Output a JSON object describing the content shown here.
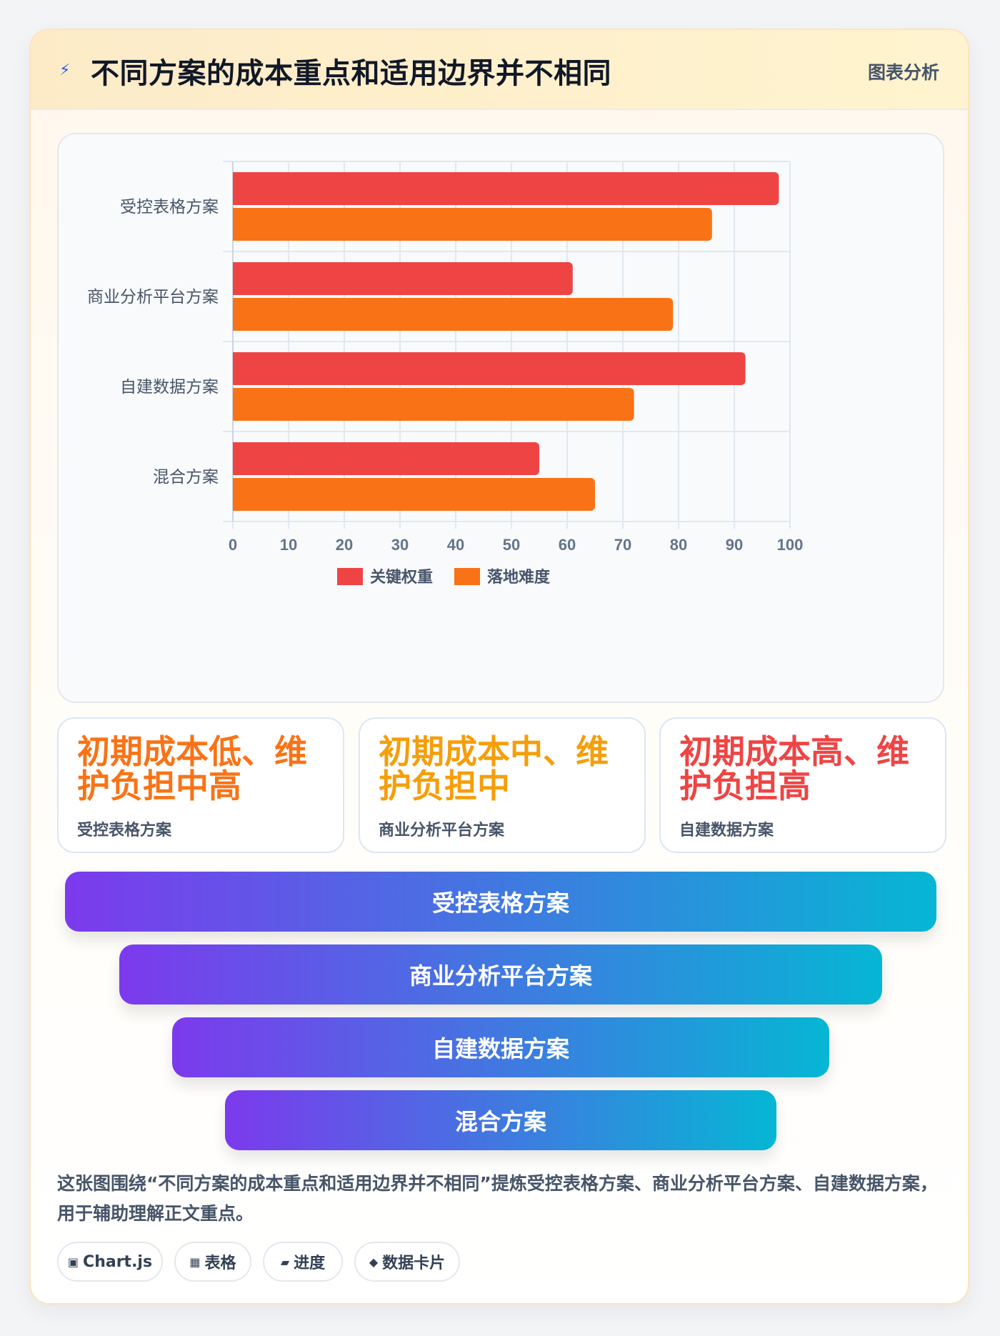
{
  "header": {
    "title": "不同方案的成本重点和适用边界并不相同",
    "tag": "图表分析",
    "icon": "lightning-icon"
  },
  "chart_data": {
    "type": "bar",
    "orientation": "horizontal",
    "categories": [
      "受控表格方案",
      "商业分析平台方案",
      "自建数据方案",
      "混合方案"
    ],
    "series": [
      {
        "name": "关键权重",
        "values": [
          98,
          61,
          92,
          55
        ],
        "color": "#ef4444"
      },
      {
        "name": "落地难度",
        "values": [
          86,
          79,
          72,
          65
        ],
        "color": "#f97316"
      }
    ],
    "xlim": [
      0,
      100
    ],
    "xticks": [
      0,
      10,
      20,
      30,
      40,
      50,
      60,
      70,
      80,
      90,
      100
    ],
    "grid": true,
    "legend": "bottom"
  },
  "stats": [
    {
      "value": "初期成本低、维护负担中高",
      "label": "受控表格方案",
      "color": "#f97316"
    },
    {
      "value": "初期成本中、维护负担中",
      "label": "商业分析平台方案",
      "color": "#f59e0b"
    },
    {
      "value": "初期成本高、维护负担高",
      "label": "自建数据方案",
      "color": "#ef4444"
    }
  ],
  "funnel": [
    "受控表格方案",
    "商业分析平台方案",
    "自建数据方案",
    "混合方案"
  ],
  "description": "这张图围绕“不同方案的成本重点和适用边界并不相同”提炼受控表格方案、商业分析平台方案、自建数据方案，用于辅助理解正文重点。",
  "tags": [
    {
      "icon": "▣",
      "label": "Chart.js"
    },
    {
      "icon": "▦",
      "label": "表格"
    },
    {
      "icon": "▰",
      "label": "进度"
    },
    {
      "icon": "◆",
      "label": "数据卡片"
    }
  ]
}
